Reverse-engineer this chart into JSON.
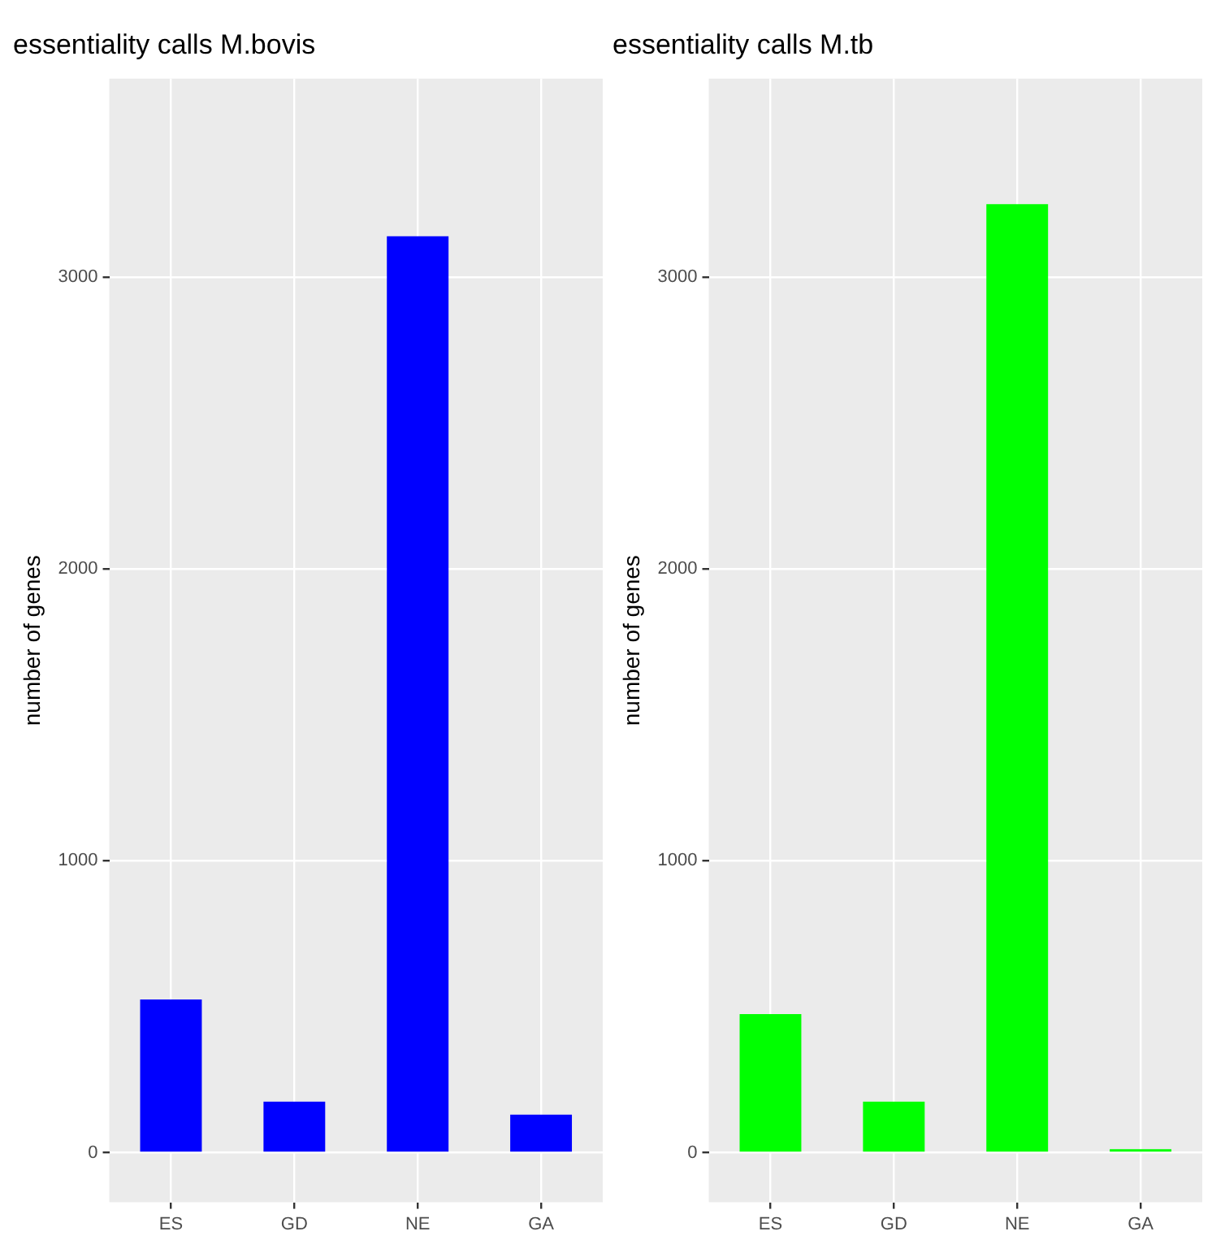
{
  "chart_data": [
    {
      "type": "bar",
      "title": "essentiality calls M.bovis",
      "ylabel": "number of genes",
      "categories": [
        "ES",
        "GD",
        "NE",
        "GA"
      ],
      "values": [
        525,
        175,
        3140,
        130
      ],
      "color": "#0000ff",
      "ylim": [
        -170,
        3680
      ],
      "yticks": [
        0,
        1000,
        2000,
        3000
      ],
      "grid": true,
      "legend": false
    },
    {
      "type": "bar",
      "title": "essentiality calls M.tb",
      "ylabel": "number of genes",
      "categories": [
        "ES",
        "GD",
        "NE",
        "GA"
      ],
      "values": [
        475,
        175,
        3250,
        12
      ],
      "color": "#00ff00",
      "ylim": [
        -170,
        3680
      ],
      "yticks": [
        0,
        1000,
        2000,
        3000
      ],
      "grid": true,
      "legend": false
    }
  ]
}
